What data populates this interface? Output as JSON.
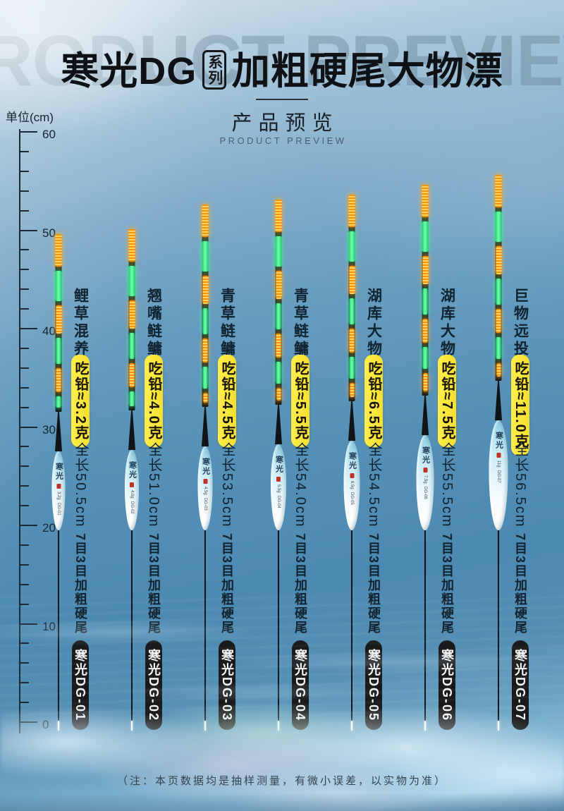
{
  "header": {
    "watermark": "PRODUCT PREVIEW",
    "title_brand": "寒光DG",
    "title_series_box": "系列",
    "title_rest": "加粗硬尾大物漂",
    "subtitle_cn": "产品预览",
    "subtitle_en": "PRODUCT PREVIEW"
  },
  "ruler": {
    "unit_label": "单位(cm)",
    "max_cm": 60,
    "min_cm": 0,
    "major_step_cm": 10,
    "minor_step_cm": 2,
    "major_labels": [
      "60",
      "50",
      "40",
      "30",
      "20",
      "10",
      "0"
    ]
  },
  "floats": [
    {
      "name": "鲤草混养",
      "lead_label": "吃铅≈3.2克",
      "length_label": "全长50.5cm",
      "tail_spec": "7目3目加粗硬尾",
      "model_label": "寒光DG-01",
      "length_cm": 50.5,
      "body_brand": "寒光",
      "body_weight_mark": "3.2g",
      "body_model_mark": "DG-01"
    },
    {
      "name": "翘嘴鲢鳙",
      "lead_label": "吃铅≈4.0克",
      "length_label": "全长51.0cm",
      "tail_spec": "7目3目加粗硬尾",
      "model_label": "寒光DG-02",
      "length_cm": 51.0,
      "body_brand": "寒光",
      "body_weight_mark": "4.0g",
      "body_model_mark": "DG-02"
    },
    {
      "name": "青草鲢鳙",
      "lead_label": "吃铅≈4.5克",
      "length_label": "全长53.5cm",
      "tail_spec": "7目3目加粗硬尾",
      "model_label": "寒光DG-03",
      "length_cm": 53.5,
      "body_brand": "寒光",
      "body_weight_mark": "4.5g",
      "body_model_mark": "DG-03"
    },
    {
      "name": "青草鲢鳙",
      "lead_label": "吃铅≈5.5克",
      "length_label": "全长54.0cm",
      "tail_spec": "7目3目加粗硬尾",
      "model_label": "寒光DG-04",
      "length_cm": 54.0,
      "body_brand": "寒光",
      "body_weight_mark": "5.5g",
      "body_model_mark": "DG-04"
    },
    {
      "name": "湖库大物",
      "lead_label": "吃铅≈6.5克",
      "length_label": "全长54.5cm",
      "tail_spec": "7目3目加粗硬尾",
      "model_label": "寒光DG-05",
      "length_cm": 54.5,
      "body_brand": "寒光",
      "body_weight_mark": "6.5g",
      "body_model_mark": "DG-05"
    },
    {
      "name": "湖库大物",
      "lead_label": "吃铅≈7.5克",
      "length_label": "全长55.5cm",
      "tail_spec": "7目3目加粗硬尾",
      "model_label": "寒光DG-06",
      "length_cm": 55.5,
      "body_brand": "寒光",
      "body_weight_mark": "7.5g",
      "body_model_mark": "DG-06"
    },
    {
      "name": "巨物远投",
      "lead_label": "吃铅≈11.0克",
      "length_label": "全长56.5cm",
      "tail_spec": "7目3目加粗硬尾",
      "model_label": "寒光DG-07",
      "length_cm": 56.5,
      "body_brand": "寒光",
      "body_weight_mark": "11g",
      "body_model_mark": "DG-07"
    }
  ],
  "footnote": "（注：本页数据均是抽样测量，有微小误差，以实物为准）",
  "colors": {
    "highlight_yellow": "#f9e534",
    "tail_orange": "#f6a31c",
    "tail_green": "#3bee85",
    "model_pill_black": "#191a1b",
    "body_light_blue": "#bfe8f4",
    "background_blue": "#5590b6"
  }
}
